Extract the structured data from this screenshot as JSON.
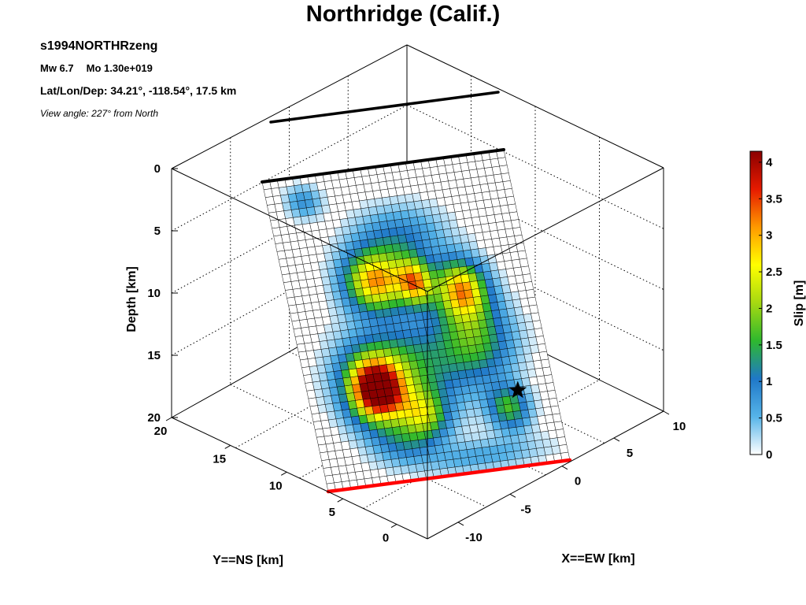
{
  "figure": {
    "title": "Northridge (Calif.)",
    "event_id": "s1994NORTHRzeng",
    "magnitude": "Mw 6.7",
    "moment": "Mo 1.30e+019",
    "location": "Lat/Lon/Dep: 34.21°, -118.54°, 17.5 km",
    "view_angle": "View angle: 227° from North"
  },
  "chart_data": {
    "type": "heatmap",
    "title": "Northridge (Calif.)",
    "description_axes": {
      "x": {
        "label": "X==EW [km]",
        "ticks": [
          "-10",
          "-5",
          "0",
          "5",
          "10"
        ],
        "range": [
          -13,
          10
        ]
      },
      "y": {
        "label": "Y==NS [km]",
        "ticks": [
          "0",
          "5",
          "10",
          "15",
          "20"
        ],
        "range": [
          -3,
          20
        ]
      },
      "z": {
        "label": "Depth [km]",
        "ticks": [
          "0",
          "5",
          "10",
          "15",
          "20"
        ],
        "range": [
          0,
          20
        ],
        "reversed": true
      }
    },
    "colorbar": {
      "label": "Slip [m]",
      "ticks": [
        "0",
        "0.5",
        "1",
        "1.5",
        "2",
        "2.5",
        "3",
        "3.5",
        "4"
      ],
      "range": [
        0,
        4.15
      ],
      "colormap": [
        "#ffffff",
        "#56b4e9",
        "#1f78c8",
        "#2eb82e",
        "#a6d911",
        "#ffff00",
        "#ff9900",
        "#e61a00",
        "#8b0000"
      ]
    },
    "fault_grid": {
      "along_strike_cells": 32,
      "down_dip_cells": 40
    },
    "slip_patches": [
      {
        "u": 0.28,
        "v": 0.7,
        "peak": 4.15,
        "ru": 0.11,
        "rv": 0.1
      },
      {
        "u": 0.37,
        "v": 0.36,
        "peak": 3.0,
        "ru": 0.12,
        "rv": 0.09
      },
      {
        "u": 0.53,
        "v": 0.38,
        "peak": 2.7,
        "ru": 0.07,
        "rv": 0.07
      },
      {
        "u": 0.71,
        "v": 0.42,
        "peak": 2.9,
        "ru": 0.1,
        "rv": 0.09
      },
      {
        "u": 0.4,
        "v": 0.66,
        "peak": 1.6,
        "ru": 0.22,
        "rv": 0.16
      },
      {
        "u": 0.72,
        "v": 0.58,
        "peak": 1.6,
        "ru": 0.15,
        "rv": 0.13
      },
      {
        "u": 0.8,
        "v": 0.81,
        "peak": 1.6,
        "ru": 0.08,
        "rv": 0.07
      },
      {
        "u": 0.45,
        "v": 0.8,
        "peak": 1.7,
        "ru": 0.09,
        "rv": 0.07
      },
      {
        "u": 0.5,
        "v": 0.24,
        "peak": 1.0,
        "ru": 0.18,
        "rv": 0.1
      },
      {
        "u": 0.15,
        "v": 0.08,
        "peak": 0.8,
        "ru": 0.07,
        "rv": 0.05
      },
      {
        "u": 0.35,
        "v": 0.88,
        "peak": 0.8,
        "ru": 0.12,
        "rv": 0.06
      },
      {
        "u": 0.65,
        "v": 0.95,
        "peak": 0.6,
        "ru": 0.25,
        "rv": 0.05
      }
    ],
    "hypocenter": {
      "marker": "star",
      "u": 0.85,
      "v": 0.76
    },
    "fault_traces": [
      {
        "label": "fault top edge",
        "color": "#000000"
      },
      {
        "label": "fault bottom edge",
        "color": "#ff0000"
      },
      {
        "label": "surface trace",
        "color": "#000000"
      }
    ],
    "grid": true
  }
}
